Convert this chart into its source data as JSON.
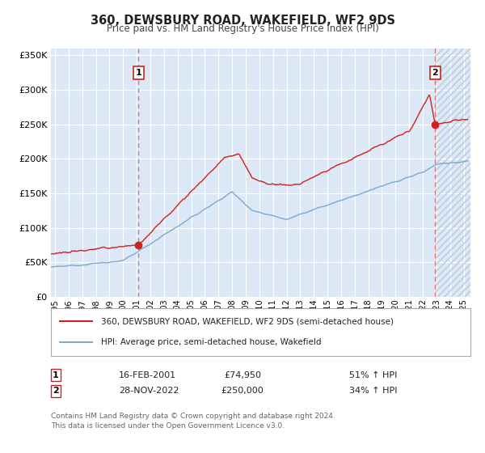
{
  "title": "360, DEWSBURY ROAD, WAKEFIELD, WF2 9DS",
  "subtitle": "Price paid vs. HM Land Registry's House Price Index (HPI)",
  "background_color": "#dce8f5",
  "grid_color": "#ffffff",
  "ylim": [
    0,
    360000
  ],
  "xlim_start": 1994.7,
  "xlim_end": 2025.5,
  "yticks": [
    0,
    50000,
    100000,
    150000,
    200000,
    250000,
    300000,
    350000
  ],
  "ytick_labels": [
    "£0",
    "£50K",
    "£100K",
    "£150K",
    "£200K",
    "£250K",
    "£300K",
    "£350K"
  ],
  "red_line_color": "#cc2222",
  "blue_line_color": "#7aaad0",
  "vline_color": "#dd7777",
  "marker_color": "#cc2222",
  "point1_x": 2001.12,
  "point1_y": 74950,
  "point1_label": "1",
  "point1_date": "16-FEB-2001",
  "point1_price": "£74,950",
  "point1_hpi": "51% ↑ HPI",
  "point2_x": 2022.91,
  "point2_y": 250000,
  "point2_label": "2",
  "point2_date": "28-NOV-2022",
  "point2_price": "£250,000",
  "point2_hpi": "34% ↑ HPI",
  "legend_red": "360, DEWSBURY ROAD, WAKEFIELD, WF2 9DS (semi-detached house)",
  "legend_blue": "HPI: Average price, semi-detached house, Wakefield",
  "footer1": "Contains HM Land Registry data © Crown copyright and database right 2024.",
  "footer2": "This data is licensed under the Open Government Licence v3.0.",
  "xlabel_years": [
    1995,
    1996,
    1997,
    1998,
    1999,
    2000,
    2001,
    2002,
    2003,
    2004,
    2005,
    2006,
    2007,
    2008,
    2009,
    2010,
    2011,
    2012,
    2013,
    2014,
    2015,
    2016,
    2017,
    2018,
    2019,
    2020,
    2021,
    2022,
    2023,
    2024,
    2025
  ]
}
